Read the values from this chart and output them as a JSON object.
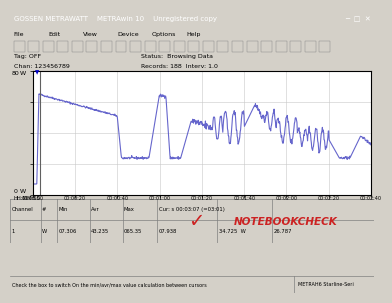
{
  "title": "GOSSEN METRAWATT    METRAwin 10    Unregistered copy",
  "status_text": "Status:  Browsing Data",
  "records_text": "Records: 188  Interv: 1.0",
  "tag_text": "Tag: OFF",
  "chan_text": "Chan: 123456789",
  "x_labels": [
    "00:00:00",
    "00:00:20",
    "00:00:40",
    "00:01:00",
    "00:01:20",
    "00:01:40",
    "00:02:00",
    "00:02:20",
    "00:02:40"
  ],
  "x_prefix": "HH:MM:SS",
  "channel_row": [
    "1",
    "W",
    "07.306",
    "43.235",
    "065.35",
    "07.938",
    "34.725  W",
    "26.787"
  ],
  "cursor_text": "Cur: s 00:03:07 (=03:01)",
  "bottom_left": "Check the box to switch On the min/avr/max value calculation between cursors",
  "bottom_right": "METRAH6 Starline-Seri",
  "line_color": "#6666cc",
  "plot_bg": "#ffffff",
  "grid_color": "#c8c8c8",
  "ymin": 0,
  "ymax": 80,
  "xmin": 0,
  "xmax": 160
}
